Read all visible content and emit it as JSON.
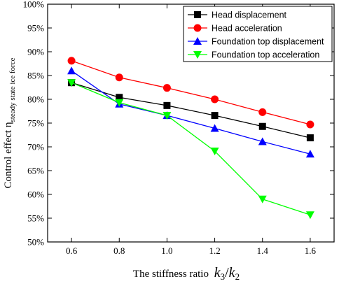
{
  "chart_data": {
    "type": "line",
    "x": [
      0.6,
      0.8,
      1.0,
      1.2,
      1.4,
      1.6
    ],
    "xlim": [
      0.5,
      1.7
    ],
    "ylim": [
      50,
      100
    ],
    "xticks": [
      0.6,
      0.8,
      1.0,
      1.2,
      1.4,
      1.6
    ],
    "yticks": [
      50,
      55,
      60,
      65,
      70,
      75,
      80,
      85,
      90,
      95,
      100
    ],
    "xtick_labels": [
      "0.6",
      "0.8",
      "1.0",
      "1.2",
      "1.4",
      "1.6"
    ],
    "ytick_labels": [
      "50%",
      "55%",
      "60%",
      "65%",
      "70%",
      "75%",
      "80%",
      "85%",
      "90%",
      "95%",
      "100%"
    ],
    "xlabel": {
      "text": "The stiffness ratio",
      "math_num": "k",
      "num_sub": "3",
      "slash": "/",
      "math_den": "k",
      "den_sub": "2"
    },
    "ylabel": {
      "text": "Control effect  η",
      "sub": "steady state ice force"
    },
    "grid": false,
    "legend_position": "top-right",
    "series": [
      {
        "name": "Head displacement",
        "color": "#000000",
        "marker": "square",
        "values": [
          83.5,
          80.4,
          78.7,
          76.6,
          74.3,
          71.9
        ]
      },
      {
        "name": "Head acceleration",
        "color": "#ff0000",
        "marker": "circle",
        "values": [
          88.1,
          84.6,
          82.4,
          80.0,
          77.3,
          74.7
        ]
      },
      {
        "name": "Foundation top displacement",
        "color": "#0000ff",
        "marker": "triangle-up",
        "values": [
          86.0,
          79.0,
          76.6,
          73.9,
          71.1,
          68.5
        ]
      },
      {
        "name": "Foundation top acceleration",
        "color": "#00ff00",
        "marker": "triangle-down",
        "values": [
          83.5,
          79.3,
          76.6,
          69.1,
          59.0,
          55.7
        ]
      }
    ]
  }
}
